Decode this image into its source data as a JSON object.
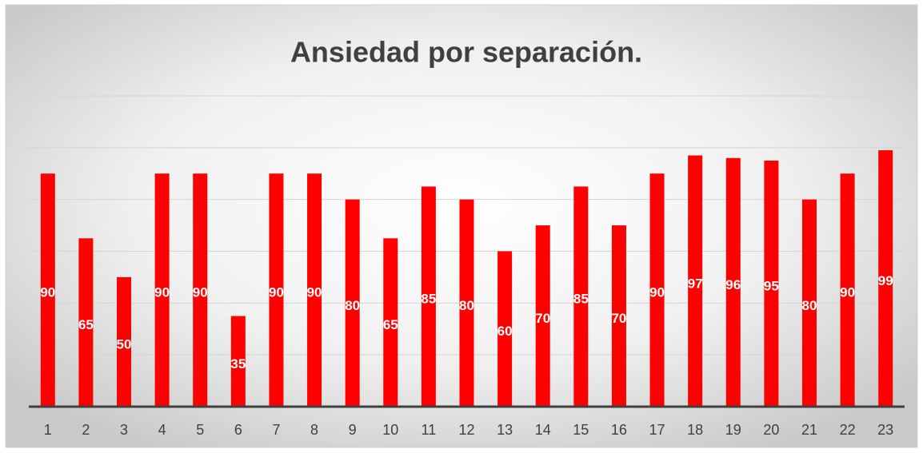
{
  "chart_data": {
    "type": "bar",
    "title": "Ansiedad por separación.",
    "categories": [
      "1",
      "2",
      "3",
      "4",
      "5",
      "6",
      "7",
      "8",
      "9",
      "10",
      "11",
      "12",
      "13",
      "14",
      "15",
      "16",
      "17",
      "18",
      "19",
      "20",
      "21",
      "22",
      "23"
    ],
    "values": [
      90,
      65,
      50,
      90,
      90,
      35,
      90,
      90,
      80,
      65,
      85,
      80,
      60,
      70,
      85,
      70,
      90,
      97,
      96,
      95,
      80,
      90,
      99
    ],
    "color": "#ff0000",
    "ylim": [
      0,
      120
    ],
    "yticks": [
      0,
      20,
      40,
      60,
      80,
      100,
      120
    ],
    "grid": true
  }
}
